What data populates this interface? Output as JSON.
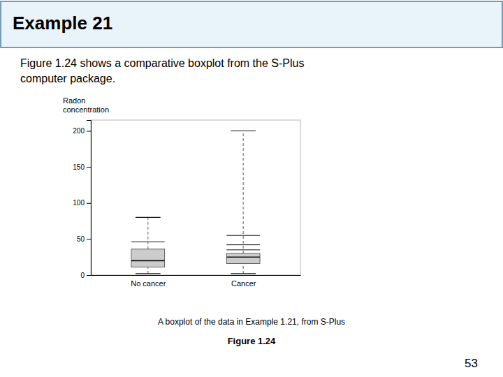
{
  "chart_data": {
    "type": "box",
    "title": "Example 21",
    "annotations": [
      "Figure 1.24 shows a comparative boxplot from the S-Plus",
      "computer package.",
      "A boxplot of the data in Example 1.21, from S-Plus",
      "Figure 1.24",
      "53"
    ],
    "ylabel": [
      "Radon",
      "concentration"
    ],
    "categories": [
      "No cancer",
      "Cancer"
    ],
    "boxes": [
      {
        "whisker_low": 2,
        "q1": 11,
        "median": 20,
        "q3": 36,
        "whisker_high": 80,
        "extra_lines": [
          46
        ]
      },
      {
        "whisker_low": 2,
        "q1": 16,
        "median": 25,
        "q3": 30,
        "whisker_high": 200,
        "extra_lines": [
          35,
          42,
          55
        ]
      }
    ],
    "color": "#cccccc",
    "ylim": [
      0,
      215
    ],
    "yticks": [
      0,
      50,
      100,
      150,
      200
    ],
    "grid": false
  }
}
